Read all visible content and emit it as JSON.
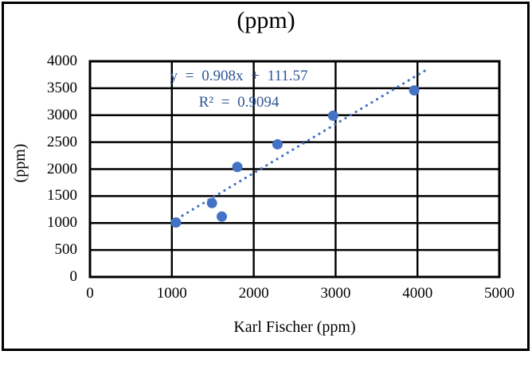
{
  "chart_data": {
    "type": "scatter",
    "title": "(ppm)",
    "xlabel": "Karl Fischer (ppm)",
    "ylabel": "(ppm)",
    "xlim": [
      0,
      5000
    ],
    "ylim": [
      0,
      4000
    ],
    "xticks": [
      0,
      1000,
      2000,
      3000,
      4000,
      5000
    ],
    "yticks": [
      0,
      500,
      1000,
      1500,
      2000,
      2500,
      3000,
      3500,
      4000
    ],
    "grid": "on",
    "legend": "none",
    "points": [
      {
        "x": 1050,
        "y": 1010
      },
      {
        "x": 1490,
        "y": 1370
      },
      {
        "x": 1610,
        "y": 1120
      },
      {
        "x": 1800,
        "y": 2040
      },
      {
        "x": 2290,
        "y": 2460
      },
      {
        "x": 2970,
        "y": 2990
      },
      {
        "x": 3960,
        "y": 3460
      }
    ],
    "trendline": {
      "style": "dotted",
      "slope": 0.908,
      "intercept": 111.57,
      "x_start": 1000,
      "x_end": 4100,
      "equation_label": "y = 0.908x + 111.57",
      "r_squared_label": "R² = 0.9094"
    },
    "colors": {
      "marker": "#4472C4",
      "trendline": "#4472C4",
      "equation_text": "#2E5597",
      "grid": "#000000",
      "frame": "#000000",
      "text": "#000000",
      "background": "#ffffff"
    }
  }
}
